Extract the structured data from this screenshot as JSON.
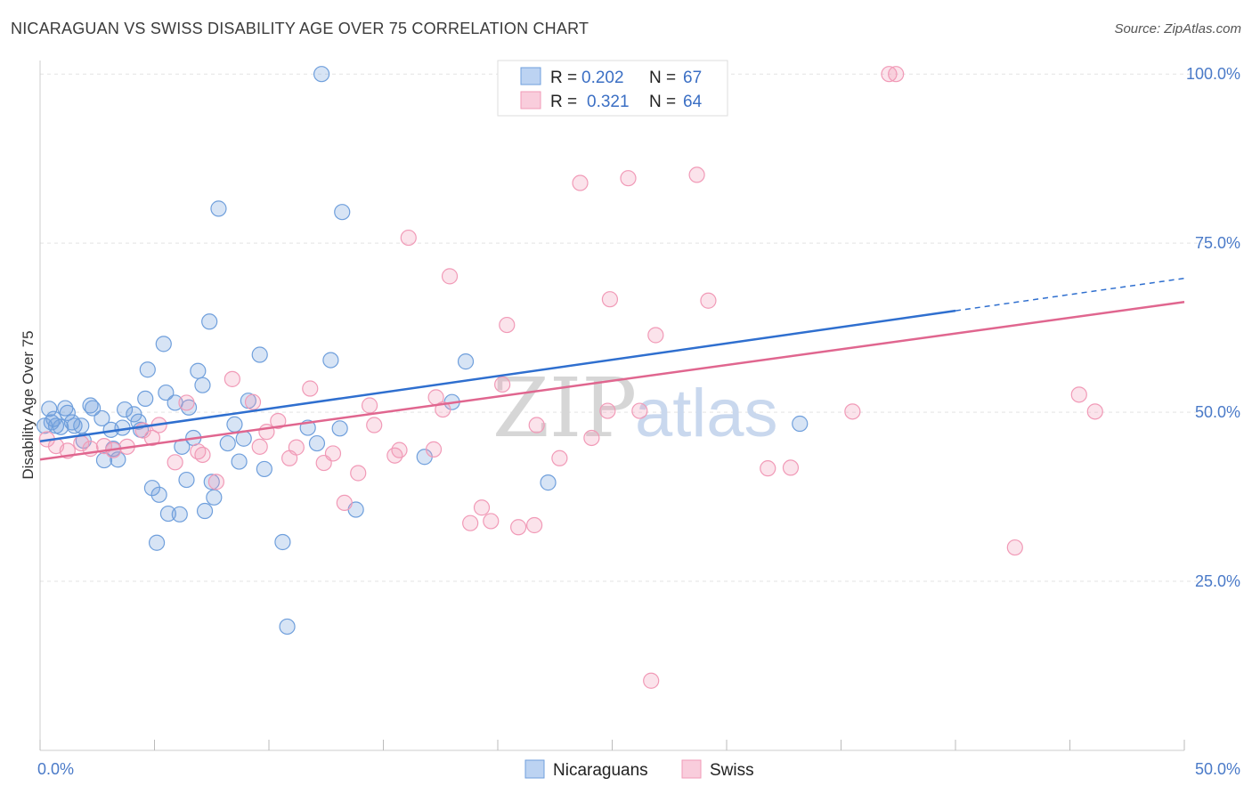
{
  "title": "NICARAGUAN VS SWISS DISABILITY AGE OVER 75 CORRELATION CHART",
  "source": "Source: ZipAtlas.com",
  "colors": {
    "blue": "#6f9fdc",
    "blue_line": "#2f6fcf",
    "pink": "#f19ab7",
    "pink_line": "#e0668f",
    "tick": "#4a7ac8"
  },
  "chart_data": {
    "type": "scatter",
    "xlabel": "",
    "ylabel": "Disability Age Over 75",
    "xlim": [
      0,
      50
    ],
    "ylim": [
      0,
      102
    ],
    "x_tick_labels": [
      {
        "value": 0,
        "label": "0.0%"
      },
      {
        "value": 50,
        "label": "50.0%"
      }
    ],
    "y_tick_labels": [
      {
        "value": 100,
        "label": "100.0%"
      },
      {
        "value": 75,
        "label": "75.0%"
      },
      {
        "value": 50,
        "label": "50.0%"
      },
      {
        "value": 25,
        "label": "25.0%"
      }
    ],
    "grid": true,
    "legend_position": "top-center",
    "watermark": {
      "part1": "ZIP",
      "part2": "atlas"
    },
    "legend": [
      {
        "r_label": "R =",
        "r_value": "0.202",
        "n_label": "N =",
        "n_value": "67"
      },
      {
        "r_label": "R =",
        "r_value": "0.321",
        "n_label": "N =",
        "n_value": "64"
      }
    ],
    "series": [
      {
        "name": "Nicaraguans",
        "color": "#6f9fdc",
        "trend": {
          "x0": 0,
          "y0": 45.7,
          "x1": 40,
          "y1": 65.0,
          "dash_to_x": 50,
          "dash_to_y": 69.8
        },
        "points": [
          [
            0.2,
            48
          ],
          [
            0.4,
            50.5
          ],
          [
            0.5,
            48.5
          ],
          [
            0.6,
            49
          ],
          [
            0.7,
            48
          ],
          [
            0.9,
            47.8
          ],
          [
            1.1,
            50.6
          ],
          [
            1.2,
            49.9
          ],
          [
            1.4,
            48.5
          ],
          [
            1.5,
            48
          ],
          [
            1.8,
            48
          ],
          [
            1.9,
            45.8
          ],
          [
            2.2,
            51
          ],
          [
            2.3,
            50.6
          ],
          [
            2.7,
            49.1
          ],
          [
            2.8,
            42.9
          ],
          [
            3.1,
            47.4
          ],
          [
            3.2,
            44.6
          ],
          [
            3.4,
            43
          ],
          [
            3.6,
            47.7
          ],
          [
            3.7,
            50.4
          ],
          [
            4.1,
            49.7
          ],
          [
            4.3,
            48.6
          ],
          [
            4.4,
            47.4
          ],
          [
            4.6,
            52
          ],
          [
            4.7,
            56.3
          ],
          [
            4.9,
            38.8
          ],
          [
            5.1,
            30.7
          ],
          [
            5.2,
            37.8
          ],
          [
            5.4,
            60.1
          ],
          [
            5.5,
            52.9
          ],
          [
            5.6,
            35
          ],
          [
            5.9,
            51.4
          ],
          [
            6.1,
            34.9
          ],
          [
            6.2,
            44.9
          ],
          [
            6.4,
            40
          ],
          [
            6.5,
            50.7
          ],
          [
            6.7,
            46.2
          ],
          [
            6.9,
            56.1
          ],
          [
            7.1,
            54
          ],
          [
            7.2,
            35.4
          ],
          [
            7.4,
            63.4
          ],
          [
            7.5,
            39.7
          ],
          [
            7.6,
            37.4
          ],
          [
            7.8,
            80.1
          ],
          [
            8.2,
            45.4
          ],
          [
            8.5,
            48.2
          ],
          [
            8.7,
            42.7
          ],
          [
            8.9,
            46.1
          ],
          [
            9.1,
            51.7
          ],
          [
            9.6,
            58.5
          ],
          [
            9.8,
            41.6
          ],
          [
            10.6,
            30.8
          ],
          [
            10.8,
            18.3
          ],
          [
            11.7,
            47.7
          ],
          [
            12.1,
            45.4
          ],
          [
            12.3,
            100
          ],
          [
            12.7,
            57.7
          ],
          [
            13.1,
            47.6
          ],
          [
            13.2,
            79.6
          ],
          [
            13.8,
            35.6
          ],
          [
            16.8,
            43.4
          ],
          [
            18,
            51.5
          ],
          [
            18.6,
            57.5
          ],
          [
            22.2,
            39.6
          ],
          [
            21.9,
            100
          ],
          [
            33.2,
            48.3
          ]
        ]
      },
      {
        "name": "Swiss",
        "color": "#f19ab7",
        "trend": {
          "x0": 0,
          "y0": 43.0,
          "x1": 50,
          "y1": 66.3
        },
        "points": [
          [
            0.3,
            46
          ],
          [
            0.7,
            45
          ],
          [
            1.2,
            44.3
          ],
          [
            1.8,
            45.4
          ],
          [
            2.2,
            44.6
          ],
          [
            2.8,
            45
          ],
          [
            3.2,
            44.4
          ],
          [
            3.8,
            44.9
          ],
          [
            4.5,
            47.3
          ],
          [
            4.9,
            46.2
          ],
          [
            5.2,
            48.1
          ],
          [
            5.9,
            42.6
          ],
          [
            6.4,
            51.4
          ],
          [
            6.9,
            44.2
          ],
          [
            7.1,
            43.7
          ],
          [
            7.7,
            39.7
          ],
          [
            8.4,
            54.9
          ],
          [
            9.3,
            51.5
          ],
          [
            9.6,
            44.9
          ],
          [
            9.9,
            47.1
          ],
          [
            10.4,
            48.7
          ],
          [
            10.9,
            43.2
          ],
          [
            11.2,
            44.8
          ],
          [
            11.8,
            53.5
          ],
          [
            12.4,
            42.5
          ],
          [
            12.8,
            43.9
          ],
          [
            13.3,
            36.6
          ],
          [
            13.9,
            41
          ],
          [
            14.4,
            51
          ],
          [
            14.6,
            48.1
          ],
          [
            15.5,
            43.6
          ],
          [
            15.7,
            44.4
          ],
          [
            16.1,
            75.8
          ],
          [
            17.3,
            52.2
          ],
          [
            17.6,
            50.4
          ],
          [
            17.9,
            70.1
          ],
          [
            18.8,
            33.6
          ],
          [
            19.3,
            35.9
          ],
          [
            19.7,
            33.9
          ],
          [
            20.2,
            54.1
          ],
          [
            20.4,
            62.9
          ],
          [
            20.9,
            33
          ],
          [
            21.6,
            33.3
          ],
          [
            21.7,
            48.1
          ],
          [
            22.7,
            43.2
          ],
          [
            23.6,
            83.9
          ],
          [
            24.1,
            46.2
          ],
          [
            24.8,
            50.2
          ],
          [
            24.9,
            66.7
          ],
          [
            25.7,
            84.6
          ],
          [
            26.2,
            50.2
          ],
          [
            26.7,
            10.3
          ],
          [
            26.9,
            61.4
          ],
          [
            28.7,
            85.1
          ],
          [
            29.2,
            66.5
          ],
          [
            31.8,
            41.7
          ],
          [
            32.8,
            41.8
          ],
          [
            35.5,
            50.1
          ],
          [
            37.1,
            100
          ],
          [
            37.4,
            100
          ],
          [
            42.6,
            30
          ],
          [
            45.4,
            52.6
          ],
          [
            46.1,
            50.1
          ],
          [
            17.2,
            44.5
          ]
        ]
      }
    ]
  }
}
